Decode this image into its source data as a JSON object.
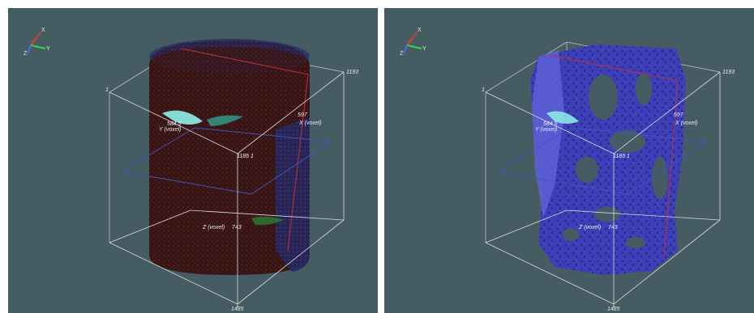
{
  "viewports": [
    {
      "axis_gizmo": {
        "x": "X",
        "y": "Y",
        "z": "Z"
      },
      "labels": {
        "box_top_right": "1193",
        "box_top_left": "1",
        "y_value": "584.5",
        "y_axis": "Y (voxel)",
        "x_value": "597",
        "x_axis": "X (voxel)",
        "center_value": "1186",
        "center_tick": "1",
        "z_axis": "Z (voxel)",
        "z_value": "743",
        "box_bottom": "1485"
      }
    },
    {
      "axis_gizmo": {
        "x": "X",
        "y": "Y",
        "z": "Z"
      },
      "labels": {
        "box_top_right": "1193",
        "box_top_left": "1",
        "y_value": "584.5",
        "y_axis": "Y (voxel)",
        "x_value": "597",
        "x_axis": "X (voxel)",
        "center_value": "1186",
        "center_tick": "1",
        "z_axis": "Z (voxel)",
        "z_value": "743",
        "box_bottom": "1485"
      }
    }
  ],
  "colors": {
    "background": "#455c63",
    "box_lines": "#d8dde0",
    "slice_red": "#c0303a",
    "slice_blue": "#3e57b8",
    "pore_blue": "#3d3fb8",
    "rock_dark": "#3a1410",
    "highlight_cyan": "#8ff0ea"
  }
}
